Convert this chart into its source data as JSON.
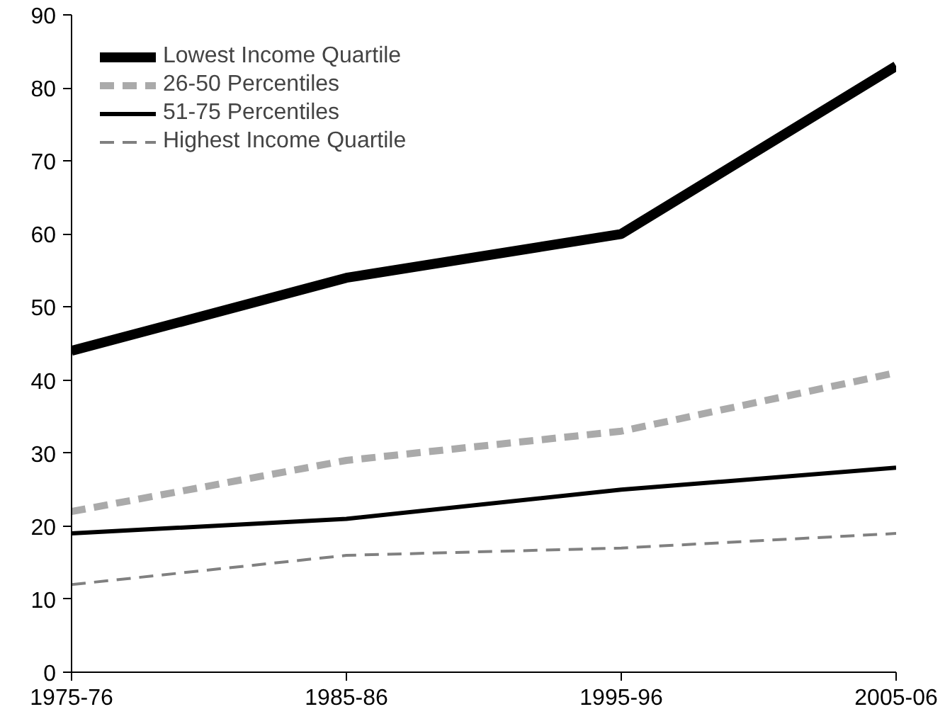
{
  "chart_data": {
    "type": "line",
    "categories": [
      "1975-76",
      "1985-86",
      "1995-96",
      "2005-06"
    ],
    "ylim": [
      0,
      90
    ],
    "yticks": [
      0,
      10,
      20,
      30,
      40,
      50,
      60,
      70,
      80,
      90
    ],
    "grid": false,
    "legend": "top left",
    "marker": "none",
    "series": [
      {
        "name": "Lowest Income Quartile",
        "color": "#000000",
        "line_style": "solid",
        "values": [
          44,
          54,
          60,
          83
        ]
      },
      {
        "name": "26-50 Percentiles",
        "color": "#aaaaaa",
        "line_style": "dashed",
        "values": [
          22,
          29,
          33,
          41
        ]
      },
      {
        "name": "51-75 Percentiles",
        "color": "#000000",
        "line_style": "solid",
        "values": [
          19,
          21,
          25,
          28
        ]
      },
      {
        "name": "Highest Income Quartile",
        "color": "#808080",
        "line_style": "dashed",
        "values": [
          12,
          16,
          17,
          19
        ]
      }
    ]
  }
}
